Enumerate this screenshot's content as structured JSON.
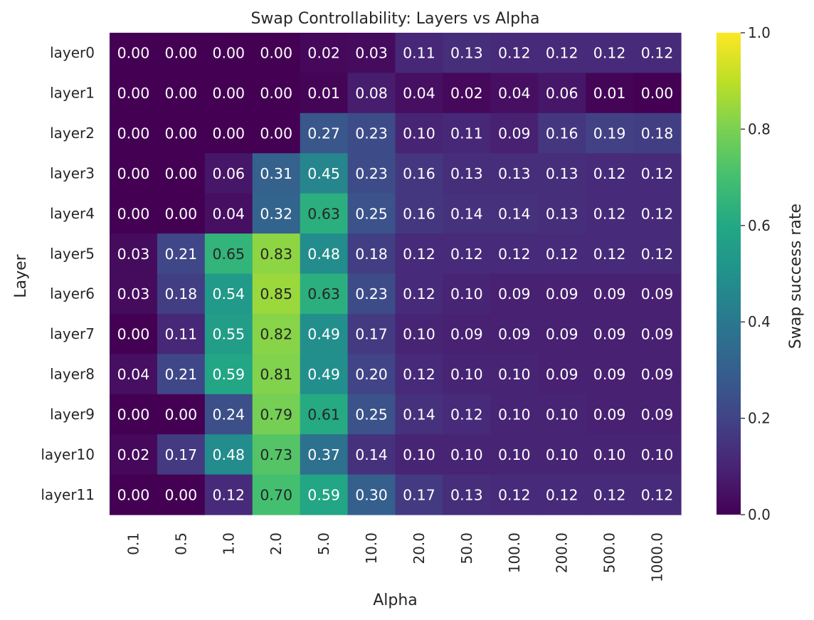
{
  "chart_data": {
    "type": "heatmap",
    "title": "Swap Controllability: Layers vs Alpha",
    "xlabel": "Alpha",
    "ylabel": "Layer",
    "colorbar_label": "Swap success rate",
    "colormap": "viridis",
    "vmin": 0.0,
    "vmax": 1.0,
    "colorbar_ticks": [
      "0.0",
      "0.2",
      "0.4",
      "0.6",
      "0.8",
      "1.0"
    ],
    "x_categories": [
      "0.1",
      "0.5",
      "1.0",
      "2.0",
      "5.0",
      "10.0",
      "20.0",
      "50.0",
      "100.0",
      "200.0",
      "500.0",
      "1000.0"
    ],
    "y_categories": [
      "layer0",
      "layer1",
      "layer2",
      "layer3",
      "layer4",
      "layer5",
      "layer6",
      "layer7",
      "layer8",
      "layer9",
      "layer10",
      "layer11"
    ],
    "values": [
      [
        0.0,
        0.0,
        0.0,
        0.0,
        0.02,
        0.03,
        0.11,
        0.13,
        0.12,
        0.12,
        0.12,
        0.12
      ],
      [
        0.0,
        0.0,
        0.0,
        0.0,
        0.01,
        0.08,
        0.04,
        0.02,
        0.04,
        0.06,
        0.01,
        0.0
      ],
      [
        0.0,
        0.0,
        0.0,
        0.0,
        0.27,
        0.23,
        0.1,
        0.11,
        0.09,
        0.16,
        0.19,
        0.18
      ],
      [
        0.0,
        0.0,
        0.06,
        0.31,
        0.45,
        0.23,
        0.16,
        0.13,
        0.13,
        0.13,
        0.12,
        0.12
      ],
      [
        0.0,
        0.0,
        0.04,
        0.32,
        0.63,
        0.25,
        0.16,
        0.14,
        0.14,
        0.13,
        0.12,
        0.12
      ],
      [
        0.03,
        0.21,
        0.65,
        0.83,
        0.48,
        0.18,
        0.12,
        0.12,
        0.12,
        0.12,
        0.12,
        0.12
      ],
      [
        0.03,
        0.18,
        0.54,
        0.85,
        0.63,
        0.23,
        0.12,
        0.1,
        0.09,
        0.09,
        0.09,
        0.09
      ],
      [
        0.0,
        0.11,
        0.55,
        0.82,
        0.49,
        0.17,
        0.1,
        0.09,
        0.09,
        0.09,
        0.09,
        0.09
      ],
      [
        0.04,
        0.21,
        0.59,
        0.81,
        0.49,
        0.2,
        0.12,
        0.1,
        0.1,
        0.09,
        0.09,
        0.09
      ],
      [
        0.0,
        0.0,
        0.24,
        0.79,
        0.61,
        0.25,
        0.14,
        0.12,
        0.1,
        0.1,
        0.09,
        0.09
      ],
      [
        0.02,
        0.17,
        0.48,
        0.73,
        0.37,
        0.14,
        0.1,
        0.1,
        0.1,
        0.1,
        0.1,
        0.1
      ],
      [
        0.0,
        0.0,
        0.12,
        0.7,
        0.59,
        0.3,
        0.17,
        0.13,
        0.12,
        0.12,
        0.12,
        0.12
      ]
    ],
    "annotation_format": "0.00",
    "grid": false,
    "legend": "colorbar-right"
  }
}
